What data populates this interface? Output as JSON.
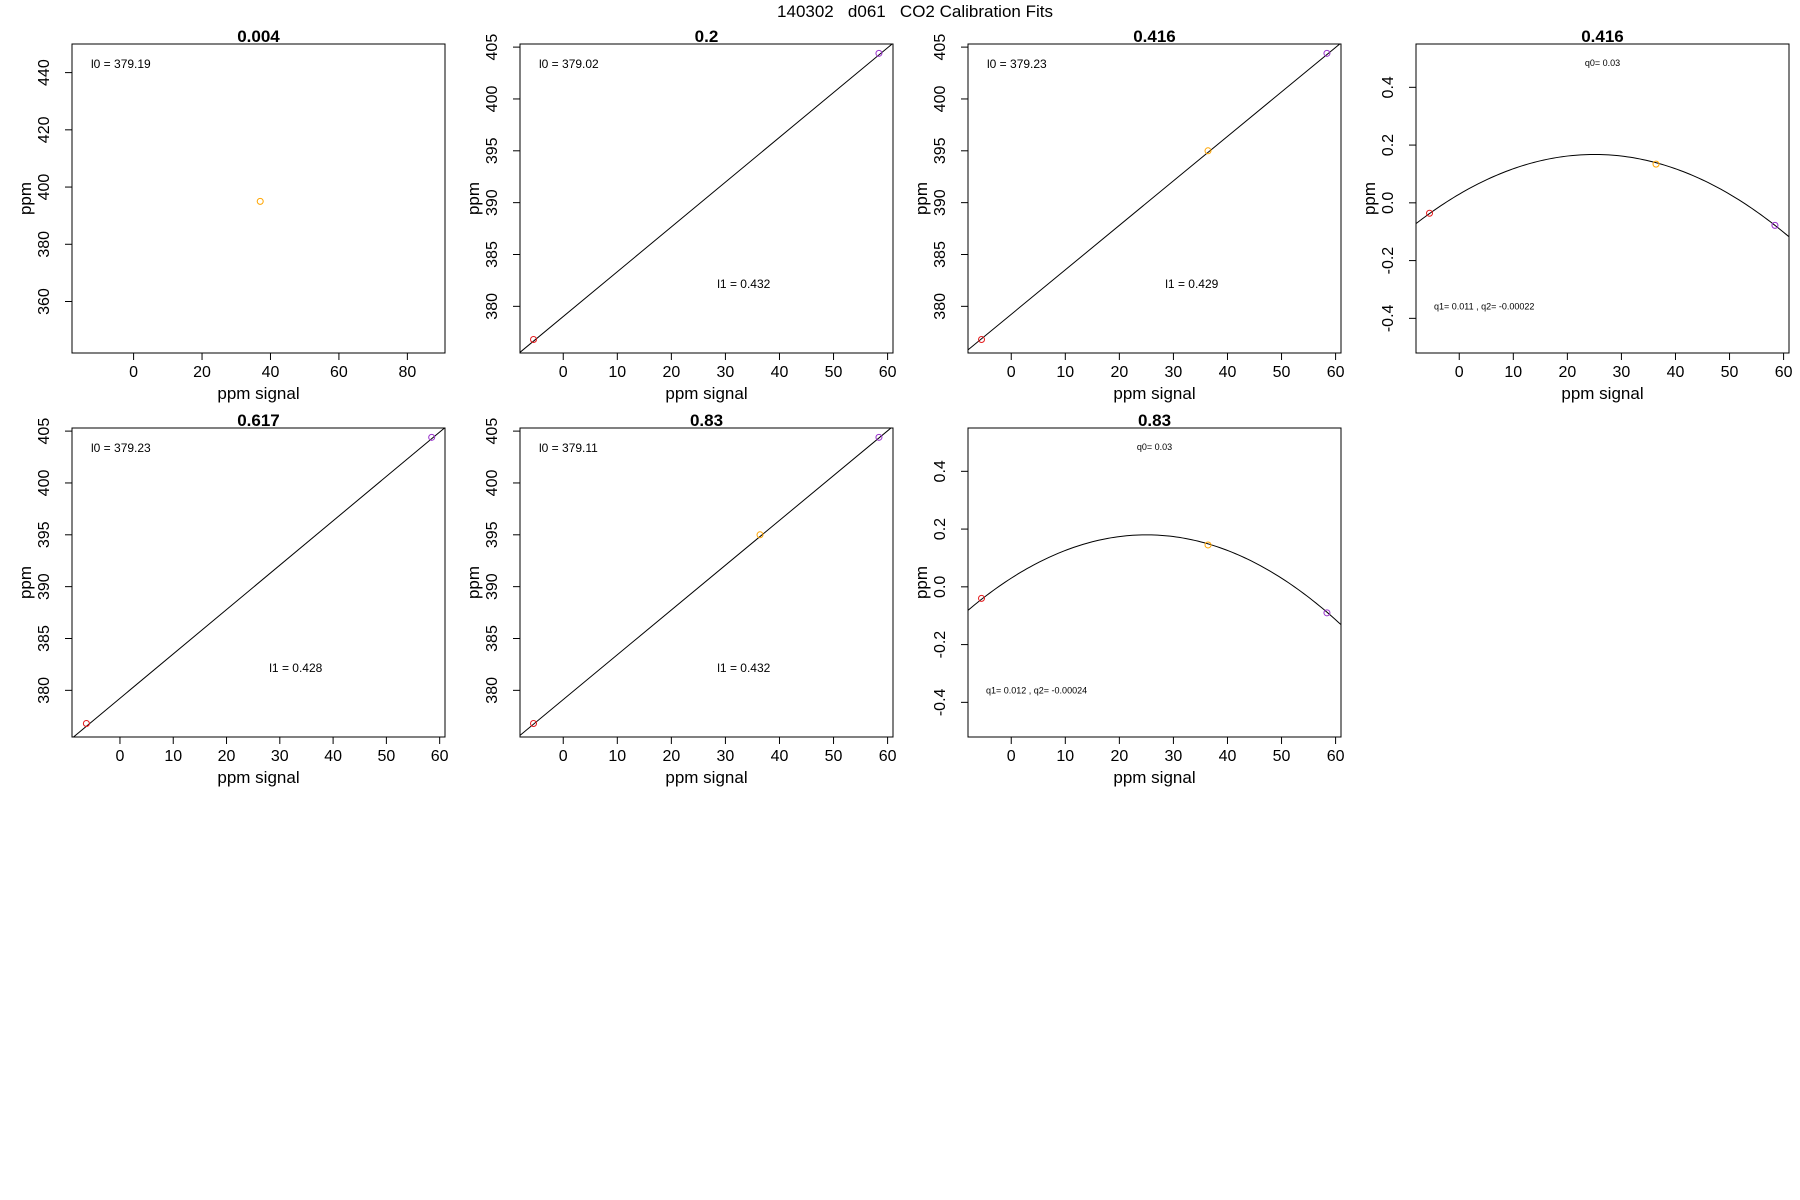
{
  "page": {
    "title": "140302   d061   CO2 Calibration Fits"
  },
  "colors": {
    "red": "#e41a1c",
    "orange": "#ffa500",
    "purple": "#9932cc",
    "line": "#000000"
  },
  "chart_data": [
    {
      "type": "scatter",
      "title": "0.004",
      "xlabel": "ppm signal",
      "ylabel": "ppm",
      "xlim": [
        -18,
        91
      ],
      "ylim": [
        342,
        450
      ],
      "xticks": [
        "0",
        "20",
        "40",
        "60",
        "80"
      ],
      "xtick_values": [
        0,
        20,
        40,
        60,
        80
      ],
      "yticks": [
        "360",
        "380",
        "400",
        "420",
        "440"
      ],
      "ytick_values": [
        360,
        380,
        400,
        420,
        440
      ],
      "points": [
        {
          "x": 37,
          "y": 395,
          "color": "orange"
        }
      ],
      "annotations": [
        {
          "name": "l0-annotation",
          "text": "l0 =  379.19",
          "corner": "top-left"
        }
      ]
    },
    {
      "type": "scatter",
      "title": "0.2",
      "xlabel": "ppm signal",
      "ylabel": "ppm",
      "xlim": [
        -8,
        61
      ],
      "ylim": [
        375.5,
        405.3
      ],
      "xticks": [
        "0",
        "10",
        "20",
        "30",
        "40",
        "50",
        "60"
      ],
      "xtick_values": [
        0,
        10,
        20,
        30,
        40,
        50,
        60
      ],
      "yticks": [
        "380",
        "385",
        "390",
        "395",
        "400",
        "405"
      ],
      "ytick_values": [
        380,
        385,
        390,
        395,
        400,
        405
      ],
      "points": [
        {
          "x": -5.5,
          "y": 376.8,
          "color": "red"
        },
        {
          "x": 58.4,
          "y": 404.4,
          "color": "purple"
        }
      ],
      "fit_line": {
        "intercept": 379.02,
        "slope": 0.432
      },
      "annotations": [
        {
          "name": "l0-annotation",
          "text": "l0 =  379.02",
          "corner": "top-left"
        },
        {
          "name": "l1-annotation",
          "text": "l1 =  0.432",
          "corner": "lower-middle"
        }
      ]
    },
    {
      "type": "scatter",
      "title": "0.416",
      "xlabel": "ppm signal",
      "ylabel": "ppm",
      "xlim": [
        -8,
        61
      ],
      "ylim": [
        375.5,
        405.3
      ],
      "xticks": [
        "0",
        "10",
        "20",
        "30",
        "40",
        "50",
        "60"
      ],
      "xtick_values": [
        0,
        10,
        20,
        30,
        40,
        50,
        60
      ],
      "yticks": [
        "380",
        "385",
        "390",
        "395",
        "400",
        "405"
      ],
      "ytick_values": [
        380,
        385,
        390,
        395,
        400,
        405
      ],
      "points": [
        {
          "x": -5.5,
          "y": 376.8,
          "color": "red"
        },
        {
          "x": 36.4,
          "y": 395,
          "color": "orange"
        },
        {
          "x": 58.4,
          "y": 404.4,
          "color": "purple"
        }
      ],
      "fit_line": {
        "intercept": 379.23,
        "slope": 0.429
      },
      "annotations": [
        {
          "name": "l0-annotation",
          "text": "l0 =  379.23",
          "corner": "top-left"
        },
        {
          "name": "l1-annotation",
          "text": "l1 =  0.429",
          "corner": "lower-middle"
        }
      ]
    },
    {
      "type": "scatter",
      "title": "0.416",
      "xlabel": "ppm signal",
      "ylabel": "ppm",
      "xlim": [
        -8,
        61
      ],
      "ylim": [
        -0.52,
        0.55
      ],
      "xticks": [
        "0",
        "10",
        "20",
        "30",
        "40",
        "50",
        "60"
      ],
      "xtick_values": [
        0,
        10,
        20,
        30,
        40,
        50,
        60
      ],
      "yticks": [
        "-0.4",
        "-0.2",
        "0.0",
        "0.2",
        "0.4"
      ],
      "ytick_values": [
        -0.4,
        -0.2,
        0.0,
        0.2,
        0.4
      ],
      "points": [
        {
          "x": -5.5,
          "y": -0.036,
          "color": "red"
        },
        {
          "x": 36.4,
          "y": 0.134,
          "color": "orange"
        },
        {
          "x": 58.4,
          "y": -0.078,
          "color": "purple"
        }
      ],
      "fit_curve": {
        "q0": 0.03,
        "q1": 0.011,
        "q2": -0.00022
      },
      "annotations": [
        {
          "name": "q0-annotation",
          "text": "q0= 0.03",
          "corner": "top-middle"
        },
        {
          "name": "q1-q2-annotation",
          "text": "q1= 0.011 , q2= -0.00022",
          "corner": "bottom-left"
        }
      ]
    },
    {
      "type": "scatter",
      "title": "0.617",
      "xlabel": "ppm signal",
      "ylabel": "ppm",
      "xlim": [
        -9,
        61
      ],
      "ylim": [
        375.5,
        405.3
      ],
      "xticks": [
        "0",
        "10",
        "20",
        "30",
        "40",
        "50",
        "60"
      ],
      "xtick_values": [
        0,
        10,
        20,
        30,
        40,
        50,
        60
      ],
      "yticks": [
        "380",
        "385",
        "390",
        "395",
        "400",
        "405"
      ],
      "ytick_values": [
        380,
        385,
        390,
        395,
        400,
        405
      ],
      "points": [
        {
          "x": -6.3,
          "y": 376.8,
          "color": "red"
        },
        {
          "x": 58.5,
          "y": 404.4,
          "color": "purple"
        }
      ],
      "fit_line": {
        "intercept": 379.23,
        "slope": 0.428
      },
      "annotations": [
        {
          "name": "l0-annotation",
          "text": "l0 =  379.23",
          "corner": "top-left"
        },
        {
          "name": "l1-annotation",
          "text": "l1 =  0.428",
          "corner": "lower-middle"
        }
      ]
    },
    {
      "type": "scatter",
      "title": "0.83",
      "xlabel": "ppm signal",
      "ylabel": "ppm",
      "xlim": [
        -8,
        61
      ],
      "ylim": [
        375.5,
        405.3
      ],
      "xticks": [
        "0",
        "10",
        "20",
        "30",
        "40",
        "50",
        "60"
      ],
      "xtick_values": [
        0,
        10,
        20,
        30,
        40,
        50,
        60
      ],
      "yticks": [
        "380",
        "385",
        "390",
        "395",
        "400",
        "405"
      ],
      "ytick_values": [
        380,
        385,
        390,
        395,
        400,
        405
      ],
      "points": [
        {
          "x": -5.5,
          "y": 376.8,
          "color": "red"
        },
        {
          "x": 36.4,
          "y": 395,
          "color": "orange"
        },
        {
          "x": 58.4,
          "y": 404.4,
          "color": "purple"
        }
      ],
      "fit_line": {
        "intercept": 379.11,
        "slope": 0.432
      },
      "annotations": [
        {
          "name": "l0-annotation",
          "text": "l0 =  379.11",
          "corner": "top-left"
        },
        {
          "name": "l1-annotation",
          "text": "l1 =  0.432",
          "corner": "lower-middle"
        }
      ]
    },
    {
      "type": "scatter",
      "title": "0.83",
      "xlabel": "ppm signal",
      "ylabel": "ppm",
      "xlim": [
        -8,
        61
      ],
      "ylim": [
        -0.52,
        0.55
      ],
      "xticks": [
        "0",
        "10",
        "20",
        "30",
        "40",
        "50",
        "60"
      ],
      "xtick_values": [
        0,
        10,
        20,
        30,
        40,
        50,
        60
      ],
      "yticks": [
        "-0.4",
        "-0.2",
        "0.0",
        "0.2",
        "0.4"
      ],
      "ytick_values": [
        -0.4,
        -0.2,
        0.0,
        0.2,
        0.4
      ],
      "points": [
        {
          "x": -5.5,
          "y": -0.04,
          "color": "red"
        },
        {
          "x": 36.4,
          "y": 0.145,
          "color": "orange"
        },
        {
          "x": 58.4,
          "y": -0.09,
          "color": "purple"
        }
      ],
      "fit_curve": {
        "q0": 0.03,
        "q1": 0.012,
        "q2": -0.00024
      },
      "annotations": [
        {
          "name": "q0-annotation",
          "text": "q0= 0.03",
          "corner": "top-middle"
        },
        {
          "name": "q1-q2-annotation",
          "text": "q1= 0.012 , q2= -0.00024",
          "corner": "bottom-left"
        }
      ]
    }
  ]
}
